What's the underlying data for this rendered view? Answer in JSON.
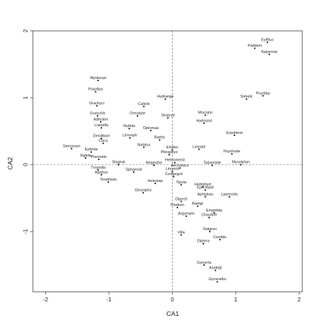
{
  "chart_data": {
    "type": "scatter",
    "xlabel": "CA1",
    "ylabel": "CA2",
    "xlim": [
      -2.2,
      2.05
    ],
    "ylim": [
      -1.9,
      2.0
    ],
    "xticks": [
      -2,
      -1,
      0,
      1,
      2
    ],
    "yticks": [
      -1,
      0,
      1,
      2
    ],
    "reference_lines": {
      "x": 0,
      "y": 0,
      "style": "dashed"
    },
    "grid": false,
    "legend": "none",
    "points": [
      {
        "label": "Eylfitus",
        "x": 1.5,
        "y": 1.83
      },
      {
        "label": "Paddeni",
        "x": 1.3,
        "y": 1.74
      },
      {
        "label": "Kppecnip",
        "x": 1.53,
        "y": 1.65
      },
      {
        "label": "Myskscpt",
        "x": -1.17,
        "y": 1.26
      },
      {
        "label": "Polyrfipx",
        "x": -1.21,
        "y": 1.09
      },
      {
        "label": "Hydrange",
        "x": -0.11,
        "y": 0.98
      },
      {
        "label": "Simulic",
        "x": 1.17,
        "y": 0.98
      },
      {
        "label": "Psyrbkp",
        "x": 1.43,
        "y": 1.03
      },
      {
        "label": "Drachycr",
        "x": -1.19,
        "y": 0.88
      },
      {
        "label": "Caltchi",
        "x": -0.45,
        "y": 0.87
      },
      {
        "label": "Gueschb",
        "x": -1.18,
        "y": 0.73
      },
      {
        "label": "Oreodyte",
        "x": -0.55,
        "y": 0.73
      },
      {
        "label": "Stratryd",
        "x": -0.07,
        "y": 0.7
      },
      {
        "label": "Mocnjnn",
        "x": 0.52,
        "y": 0.74
      },
      {
        "label": "Adhrater",
        "x": -1.13,
        "y": 0.64
      },
      {
        "label": "Hydnrjnd",
        "x": 0.5,
        "y": 0.62
      },
      {
        "label": "Lninellfs",
        "x": -1.12,
        "y": 0.55
      },
      {
        "label": "Nutlsla",
        "x": -0.68,
        "y": 0.54
      },
      {
        "label": "Oplomaa",
        "x": -0.34,
        "y": 0.51
      },
      {
        "label": "Erpobtest",
        "x": 0.98,
        "y": 0.44
      },
      {
        "label": "Dendlbart",
        "x": -1.12,
        "y": 0.39
      },
      {
        "label": "Limnoph",
        "x": -0.67,
        "y": 0.4
      },
      {
        "label": "Baetis",
        "x": -0.2,
        "y": 0.37
      },
      {
        "label": "Caca",
        "x": -1.09,
        "y": 0.32
      },
      {
        "label": "Natalus",
        "x": -0.45,
        "y": 0.26
      },
      {
        "label": "Stenoeam",
        "x": -1.59,
        "y": 0.24
      },
      {
        "label": "Elodes",
        "x": 0.0,
        "y": 0.22
      },
      {
        "label": "Lineatd",
        "x": 0.42,
        "y": 0.23
      },
      {
        "label": "Eyttrida",
        "x": -1.28,
        "y": 0.19
      },
      {
        "label": "Pbosphyx",
        "x": -0.05,
        "y": 0.15
      },
      {
        "label": "Psychode",
        "x": 0.94,
        "y": 0.16
      },
      {
        "label": "Sigkila",
        "x": -1.37,
        "y": 0.1
      },
      {
        "label": "Planorbls",
        "x": -1.16,
        "y": 0.08
      },
      {
        "label": "Hetosmerid",
        "x": 0.04,
        "y": 0.03
      },
      {
        "label": "Stagnal",
        "x": -0.85,
        "y": 0.0
      },
      {
        "label": "Neigoribe",
        "x": -0.29,
        "y": -0.01
      },
      {
        "label": "Tabannide",
        "x": 0.63,
        "y": -0.01
      },
      {
        "label": "Mysotptan",
        "x": 1.08,
        "y": 0.0
      },
      {
        "label": "Aechalaca",
        "x": 0.12,
        "y": -0.05
      },
      {
        "label": "Linneoti",
        "x": 0.0,
        "y": -0.1
      },
      {
        "label": "Trogadia",
        "x": -1.17,
        "y": -0.08
      },
      {
        "label": "Sphaenid",
        "x": -0.61,
        "y": -0.11
      },
      {
        "label": "Agabus",
        "x": -1.12,
        "y": -0.15
      },
      {
        "label": "Corbprgrd",
        "x": 0.02,
        "y": -0.18
      },
      {
        "label": "Tinafrbsts",
        "x": -1.01,
        "y": -0.26
      },
      {
        "label": "Helestap",
        "x": -0.27,
        "y": -0.28
      },
      {
        "label": "Tipula",
        "x": 0.14,
        "y": -0.3
      },
      {
        "label": "Hydrphyd",
        "x": 0.48,
        "y": -0.33
      },
      {
        "label": "Epeclbpdi",
        "x": 0.52,
        "y": -0.38
      },
      {
        "label": "Glossiphs",
        "x": -0.46,
        "y": -0.42
      },
      {
        "label": "Lypenodu",
        "x": 0.9,
        "y": -0.48
      },
      {
        "label": "Aphlubau",
        "x": 0.52,
        "y": -0.48
      },
      {
        "label": "Dipectl",
        "x": 0.14,
        "y": -0.55
      },
      {
        "label": "Baetgr",
        "x": 0.4,
        "y": -0.62
      },
      {
        "label": "Pisdium",
        "x": 0.08,
        "y": -0.64
      },
      {
        "label": "Empidida",
        "x": 0.66,
        "y": -0.72
      },
      {
        "label": "Argyroplo",
        "x": 0.22,
        "y": -0.77
      },
      {
        "label": "Chaufinlt",
        "x": 0.58,
        "y": -0.79
      },
      {
        "label": "Siaigrsu",
        "x": 0.59,
        "y": -1.0
      },
      {
        "label": "Villa",
        "x": 0.14,
        "y": -1.05
      },
      {
        "label": "Centlde",
        "x": 0.75,
        "y": -1.12
      },
      {
        "label": "Diptera",
        "x": 0.49,
        "y": -1.18
      },
      {
        "label": "Gynsrrla",
        "x": 0.5,
        "y": -1.5
      },
      {
        "label": "Asaktgt",
        "x": 0.68,
        "y": -1.58
      },
      {
        "label": "Gynsralbu",
        "x": 0.71,
        "y": -1.75
      }
    ]
  }
}
